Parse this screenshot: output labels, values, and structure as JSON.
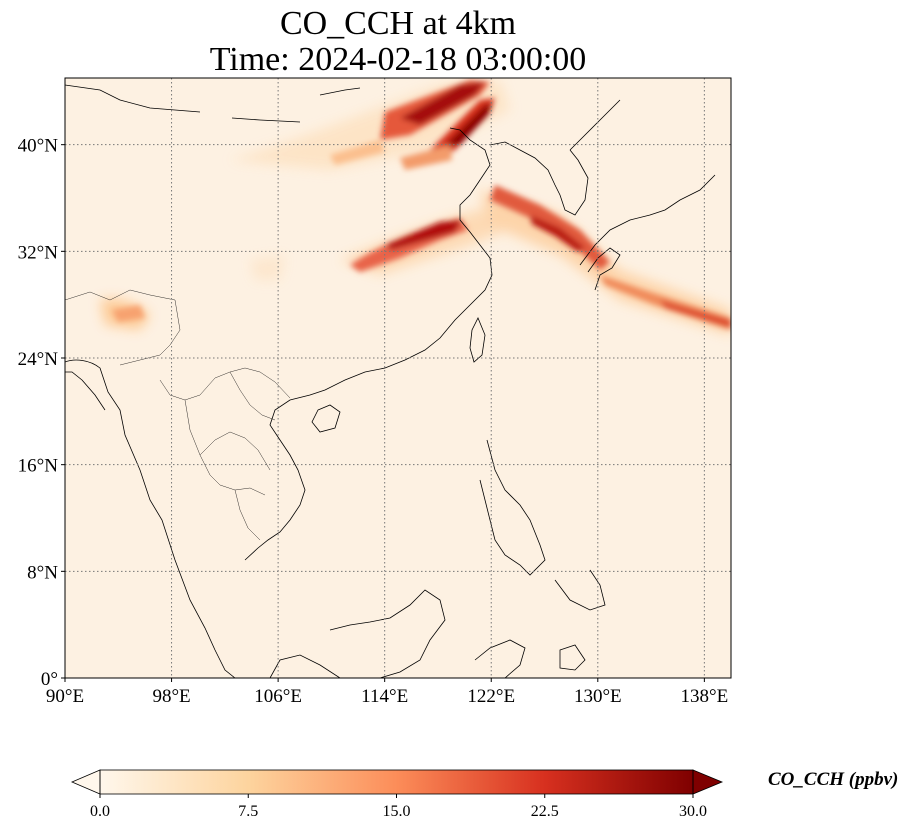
{
  "title_line1": "CO_CCH at 4km",
  "title_line2": "Time: 2024-02-18 03:00:00",
  "map": {
    "lon_range": [
      90,
      140
    ],
    "lat_range": [
      0,
      45
    ],
    "lon_ticks": [
      90,
      98,
      106,
      114,
      122,
      130,
      138
    ],
    "lat_ticks": [
      0,
      8,
      16,
      24,
      32,
      40
    ],
    "lon_tick_labels": [
      "90°E",
      "98°E",
      "106°E",
      "114°E",
      "122°E",
      "130°E",
      "138°E"
    ],
    "lat_tick_labels": [
      "0°",
      "8°N",
      "16°N",
      "24°N",
      "32°N",
      "40°N"
    ],
    "gridlines": true,
    "gridline_style": "dotted"
  },
  "colorbar": {
    "label": "CO_CCH (ppbv)",
    "min": 0.0,
    "max": 30.0,
    "ticks": [
      "0.0",
      "7.5",
      "15.0",
      "22.5",
      "30.0"
    ],
    "colormap": "OrRd",
    "extend": "both",
    "colors": [
      "#fff7ec",
      "#fdd49e",
      "#fc8d59",
      "#d7301f",
      "#7f0000"
    ]
  }
}
